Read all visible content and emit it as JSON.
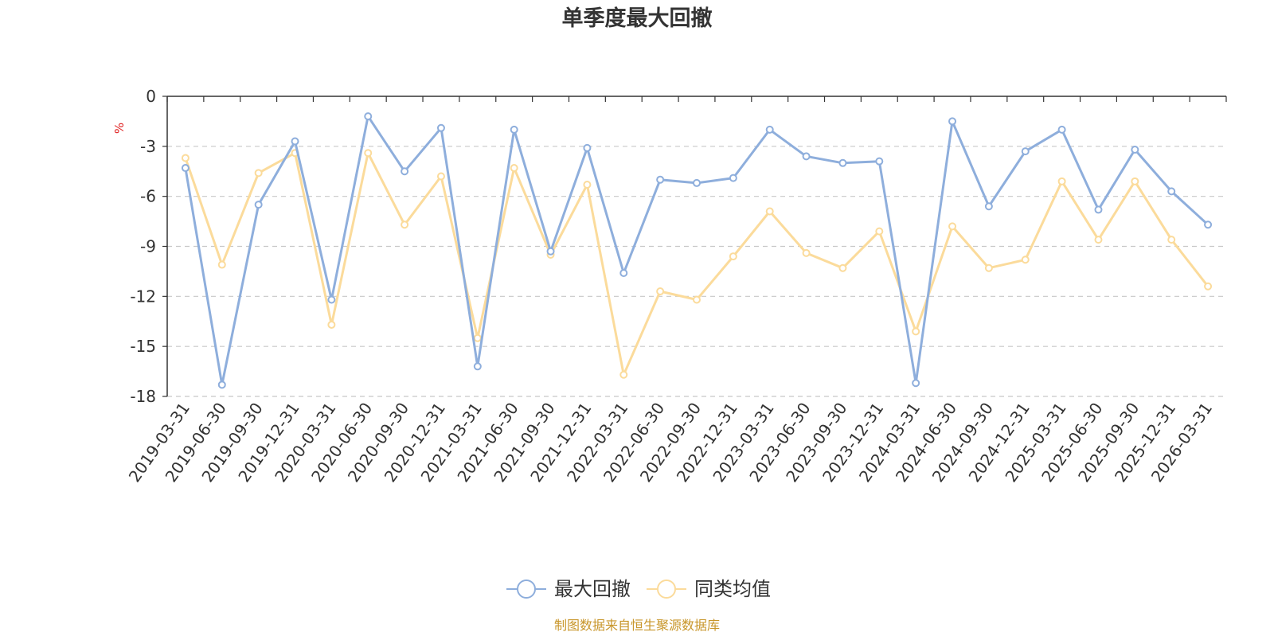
{
  "chart_data": {
    "type": "line",
    "title": "单季度最大回撤",
    "ylabel": "%",
    "ylim": [
      -18,
      0
    ],
    "yticks": [
      0,
      -3,
      -6,
      -9,
      -12,
      -15,
      -18
    ],
    "grid": true,
    "legend_position": "bottom",
    "categories": [
      "2019-03-31",
      "2019-06-30",
      "2019-09-30",
      "2019-12-31",
      "2020-03-31",
      "2020-06-30",
      "2020-09-30",
      "2020-12-31",
      "2021-03-31",
      "2021-06-30",
      "2021-09-30",
      "2021-12-31",
      "2022-03-31",
      "2022-06-30",
      "2022-09-30",
      "2022-12-31",
      "2023-03-31",
      "2023-06-30",
      "2023-09-30",
      "2023-12-31",
      "2024-03-31",
      "2024-06-30",
      "2024-09-30",
      "2024-12-31",
      "2025-03-31",
      "2025-06-30",
      "2025-09-30",
      "2025-12-31",
      "2026-03-31"
    ],
    "series": [
      {
        "name": "最大回撤",
        "color": "#8eaedc",
        "values": [
          -4.3,
          -17.3,
          -6.5,
          -2.7,
          -12.2,
          -1.2,
          -4.5,
          -1.9,
          -16.2,
          -2.0,
          -9.3,
          -3.1,
          -10.6,
          -5.0,
          -5.2,
          -4.9,
          -2.0,
          -3.6,
          -4.0,
          -3.9,
          -17.2,
          -1.5,
          -6.6,
          -3.3,
          -2.0,
          -6.8,
          -3.2,
          -5.7,
          -7.7
        ]
      },
      {
        "name": "同类均值",
        "color": "#fbdb9b",
        "values": [
          -3.7,
          -10.1,
          -4.6,
          -3.4,
          -13.7,
          -3.4,
          -7.7,
          -4.8,
          -14.5,
          -4.3,
          -9.5,
          -5.3,
          -16.7,
          -11.7,
          -12.2,
          -9.6,
          -6.9,
          -9.4,
          -10.3,
          -8.1,
          -14.1,
          -7.8,
          -10.3,
          -9.8,
          -5.1,
          -8.6,
          -5.1,
          -8.6,
          -11.4
        ]
      }
    ]
  },
  "source": "制图数据来自恒生聚源数据库"
}
